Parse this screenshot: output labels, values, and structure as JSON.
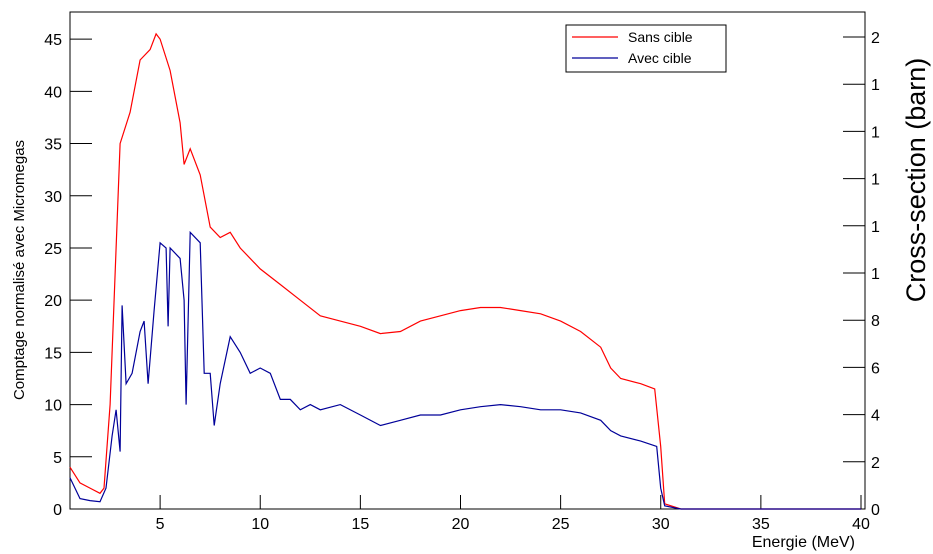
{
  "chart_data": {
    "type": "line",
    "xlabel": "Energie (MeV)",
    "ylabel": "Comptage normalisé avec Micromegas",
    "y2label": "Cross-section (barn)",
    "xlim": [
      0.5,
      40.2
    ],
    "xticks": [
      5,
      10,
      15,
      20,
      25,
      30,
      35,
      40
    ],
    "ylim": [
      0,
      47.6
    ],
    "yticks": [
      0,
      5,
      10,
      15,
      20,
      25,
      30,
      35,
      40,
      45
    ],
    "y2lim": [
      0,
      21.06
    ],
    "y2ticks": [
      0,
      2,
      4,
      6,
      8,
      {
        "value": 10,
        "label": "1"
      },
      {
        "value": 12,
        "label": "1"
      },
      {
        "value": 14,
        "label": "1"
      },
      {
        "value": 16,
        "label": "1"
      },
      {
        "value": 18,
        "label": "1"
      },
      {
        "value": 20,
        "label": "2"
      }
    ],
    "legend": "upper right",
    "series": [
      {
        "name": "Sans cible",
        "color": "#ff0000",
        "x": [
          0.5,
          1,
          1.5,
          2,
          2.2,
          2.5,
          2.8,
          3,
          3.5,
          4,
          4.5,
          4.8,
          5,
          5.5,
          6,
          6.2,
          6.5,
          7,
          7.5,
          8,
          8.5,
          9,
          10,
          11,
          12,
          13,
          14,
          15,
          16,
          17,
          18,
          19,
          20,
          21,
          22,
          23,
          24,
          25,
          26,
          27,
          27.5,
          28,
          29,
          29.7,
          30,
          30.2,
          31,
          40
        ],
        "values": [
          4,
          2.5,
          2,
          1.5,
          2,
          10,
          25,
          35,
          38,
          43,
          44,
          45.5,
          45,
          42,
          37,
          33,
          34.5,
          32,
          27,
          26,
          26.5,
          25,
          23,
          21.5,
          20,
          18.5,
          18,
          17.5,
          16.8,
          17,
          18,
          18.5,
          19,
          19.3,
          19.3,
          19,
          18.7,
          18,
          17,
          15.5,
          13.5,
          12.5,
          12,
          11.5,
          6,
          0.5,
          0,
          0
        ]
      },
      {
        "name": "Avec cible",
        "color": "#000099",
        "x": [
          0.5,
          1,
          1.5,
          2,
          2.3,
          2.6,
          2.8,
          3,
          3.1,
          3.3,
          3.6,
          4,
          4.2,
          4.4,
          4.7,
          5,
          5.3,
          5.4,
          5.5,
          6,
          6.2,
          6.3,
          6.5,
          7,
          7.2,
          7.5,
          7.7,
          8,
          8.5,
          9,
          9.5,
          10,
          10.5,
          11,
          11.5,
          12,
          12.5,
          13,
          14,
          15,
          16,
          17,
          18,
          19,
          20,
          21,
          22,
          23,
          24,
          25,
          26,
          27,
          27.5,
          28,
          29,
          29.8,
          30,
          30.2,
          31,
          40
        ],
        "values": [
          3,
          1,
          0.8,
          0.7,
          2,
          7,
          9.5,
          5.5,
          19.5,
          12,
          13,
          17,
          18,
          12,
          19,
          25.5,
          25,
          17.5,
          25,
          24,
          20,
          10,
          26.5,
          25.5,
          13,
          13,
          8,
          12,
          16.5,
          15,
          13,
          13.5,
          13,
          10.5,
          10.5,
          9.5,
          10,
          9.5,
          10,
          9,
          8,
          8.5,
          9,
          9,
          9.5,
          9.8,
          10,
          9.8,
          9.5,
          9.5,
          9.2,
          8.5,
          7.5,
          7,
          6.5,
          6,
          2,
          0.3,
          0,
          0
        ]
      }
    ]
  }
}
